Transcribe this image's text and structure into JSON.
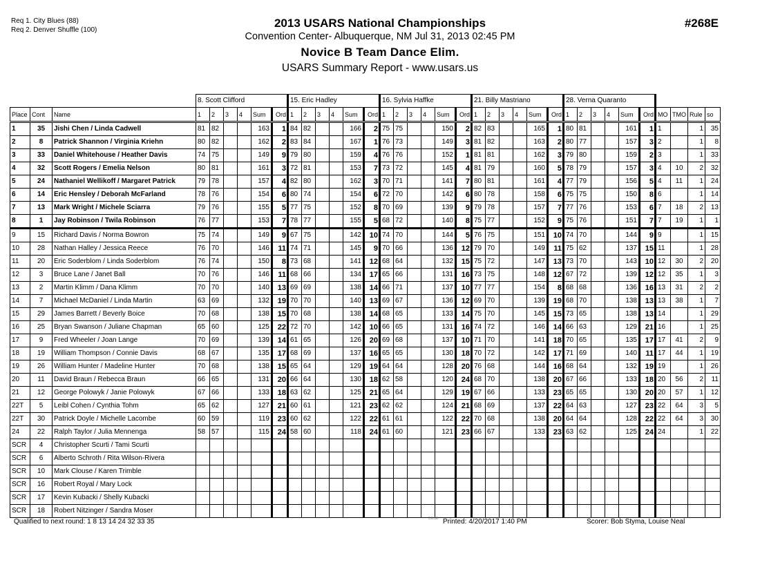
{
  "header": {
    "requests": [
      "Req  1.  City Blues (88)",
      "Req  2.  Denver Shuffle (100)"
    ],
    "title": "2013 USARS National Championships",
    "venue": "Convention Center- Albuquerque, NM  Jul 31, 2013  02:45 PM",
    "event": "Novice B Team Dance Elim.",
    "report": "USARS Summary Report - www.usars.us",
    "event_number": "#268E"
  },
  "table": {
    "judges": [
      "8.  Scott Clifford",
      "15.  Eric Hadley",
      "16.  Sylvia Haffke",
      "21.  Billy Mastriano",
      "28.  Verna Quaranto"
    ],
    "columns": {
      "place": "Place",
      "cont": "Cont",
      "name": "Name",
      "judge_cols": [
        "1",
        "2",
        "3",
        "4",
        "Sum",
        "Ord"
      ],
      "mo": "MO",
      "tmo": "TMO",
      "rule": "Rule",
      "so": "so"
    },
    "qualified_count": 8,
    "rows": [
      {
        "place": "1",
        "cont": "35",
        "name": "Jishi Chen / Linda Cadwell",
        "judges": [
          [
            "81",
            "82",
            "163",
            "1"
          ],
          [
            "84",
            "82",
            "166",
            "2"
          ],
          [
            "75",
            "75",
            "150",
            "2"
          ],
          [
            "82",
            "83",
            "165",
            "1"
          ],
          [
            "80",
            "81",
            "161",
            "1"
          ]
        ],
        "mo": "1",
        "tmo": "",
        "rule": "1",
        "so": "35"
      },
      {
        "place": "2",
        "cont": "8",
        "name": "Patrick Shannon / Virginia Kriehn",
        "judges": [
          [
            "80",
            "82",
            "162",
            "2"
          ],
          [
            "83",
            "84",
            "167",
            "1"
          ],
          [
            "76",
            "73",
            "149",
            "3"
          ],
          [
            "81",
            "82",
            "163",
            "2"
          ],
          [
            "80",
            "77",
            "157",
            "3"
          ]
        ],
        "mo": "2",
        "tmo": "",
        "rule": "1",
        "so": "8"
      },
      {
        "place": "3",
        "cont": "33",
        "name": "Daniel Whitehouse / Heather Davis",
        "judges": [
          [
            "74",
            "75",
            "149",
            "9"
          ],
          [
            "79",
            "80",
            "159",
            "4"
          ],
          [
            "76",
            "76",
            "152",
            "1"
          ],
          [
            "81",
            "81",
            "162",
            "3"
          ],
          [
            "79",
            "80",
            "159",
            "2"
          ]
        ],
        "mo": "3",
        "tmo": "",
        "rule": "1",
        "so": "33"
      },
      {
        "place": "4",
        "cont": "32",
        "name": "Scott Rogers / Emelia Nelson",
        "judges": [
          [
            "80",
            "81",
            "161",
            "3"
          ],
          [
            "72",
            "81",
            "153",
            "7"
          ],
          [
            "73",
            "72",
            "145",
            "4"
          ],
          [
            "81",
            "79",
            "160",
            "5"
          ],
          [
            "78",
            "79",
            "157",
            "3"
          ]
        ],
        "mo": "4",
        "tmo": "10",
        "rule": "2",
        "so": "32"
      },
      {
        "place": "5",
        "cont": "24",
        "name": "Nathaniel Wellikoff / Margaret Patrick",
        "judges": [
          [
            "79",
            "78",
            "157",
            "4"
          ],
          [
            "82",
            "80",
            "162",
            "3"
          ],
          [
            "70",
            "71",
            "141",
            "7"
          ],
          [
            "80",
            "81",
            "161",
            "4"
          ],
          [
            "77",
            "79",
            "156",
            "5"
          ]
        ],
        "mo": "4",
        "tmo": "11",
        "rule": "1",
        "so": "24"
      },
      {
        "place": "6",
        "cont": "14",
        "name": "Eric Hensley / Deborah McFarland",
        "judges": [
          [
            "78",
            "76",
            "154",
            "6"
          ],
          [
            "80",
            "74",
            "154",
            "6"
          ],
          [
            "72",
            "70",
            "142",
            "6"
          ],
          [
            "80",
            "78",
            "158",
            "6"
          ],
          [
            "75",
            "75",
            "150",
            "8"
          ]
        ],
        "mo": "6",
        "tmo": "",
        "rule": "1",
        "so": "14"
      },
      {
        "place": "7",
        "cont": "13",
        "name": "Mark Wright / Michele Sciarra",
        "judges": [
          [
            "79",
            "76",
            "155",
            "5"
          ],
          [
            "77",
            "75",
            "152",
            "8"
          ],
          [
            "70",
            "69",
            "139",
            "9"
          ],
          [
            "79",
            "78",
            "157",
            "7"
          ],
          [
            "77",
            "76",
            "153",
            "6"
          ]
        ],
        "mo": "7",
        "tmo": "18",
        "rule": "2",
        "so": "13"
      },
      {
        "place": "8",
        "cont": "1",
        "name": "Jay Robinson / Twila Robinson",
        "judges": [
          [
            "76",
            "77",
            "153",
            "7"
          ],
          [
            "78",
            "77",
            "155",
            "5"
          ],
          [
            "68",
            "72",
            "140",
            "8"
          ],
          [
            "75",
            "77",
            "152",
            "9"
          ],
          [
            "75",
            "76",
            "151",
            "7"
          ]
        ],
        "mo": "7",
        "tmo": "19",
        "rule": "1",
        "so": "1"
      },
      {
        "place": "9",
        "cont": "15",
        "name": "Richard Davis / Norma Bowron",
        "judges": [
          [
            "75",
            "74",
            "149",
            "9"
          ],
          [
            "67",
            "75",
            "142",
            "10"
          ],
          [
            "74",
            "70",
            "144",
            "5"
          ],
          [
            "76",
            "75",
            "151",
            "10"
          ],
          [
            "74",
            "70",
            "144",
            "9"
          ]
        ],
        "mo": "9",
        "tmo": "",
        "rule": "1",
        "so": "15"
      },
      {
        "place": "10",
        "cont": "28",
        "name": "Nathan Halley / Jessica Reece",
        "judges": [
          [
            "76",
            "70",
            "146",
            "11"
          ],
          [
            "74",
            "71",
            "145",
            "9"
          ],
          [
            "70",
            "66",
            "136",
            "12"
          ],
          [
            "79",
            "70",
            "149",
            "11"
          ],
          [
            "75",
            "62",
            "137",
            "15"
          ]
        ],
        "mo": "11",
        "tmo": "",
        "rule": "1",
        "so": "28"
      },
      {
        "place": "11",
        "cont": "20",
        "name": "Eric Soderblom / Linda Soderblom",
        "judges": [
          [
            "76",
            "74",
            "150",
            "8"
          ],
          [
            "73",
            "68",
            "141",
            "12"
          ],
          [
            "68",
            "64",
            "132",
            "15"
          ],
          [
            "75",
            "72",
            "147",
            "13"
          ],
          [
            "73",
            "70",
            "143",
            "10"
          ]
        ],
        "mo": "12",
        "tmo": "30",
        "rule": "2",
        "so": "20"
      },
      {
        "place": "12",
        "cont": "3",
        "name": "Bruce Lane / Janet Ball",
        "judges": [
          [
            "70",
            "76",
            "146",
            "11"
          ],
          [
            "68",
            "66",
            "134",
            "17"
          ],
          [
            "65",
            "66",
            "131",
            "16"
          ],
          [
            "73",
            "75",
            "148",
            "12"
          ],
          [
            "67",
            "72",
            "139",
            "12"
          ]
        ],
        "mo": "12",
        "tmo": "35",
        "rule": "1",
        "so": "3"
      },
      {
        "place": "13",
        "cont": "2",
        "name": "Martin Klimm / Dana Klimm",
        "judges": [
          [
            "70",
            "70",
            "140",
            "13"
          ],
          [
            "69",
            "69",
            "138",
            "14"
          ],
          [
            "66",
            "71",
            "137",
            "10"
          ],
          [
            "77",
            "77",
            "154",
            "8"
          ],
          [
            "68",
            "68",
            "136",
            "16"
          ]
        ],
        "mo": "13",
        "tmo": "31",
        "rule": "2",
        "so": "2"
      },
      {
        "place": "14",
        "cont": "7",
        "name": "Michael McDaniel / Linda Martin",
        "judges": [
          [
            "63",
            "69",
            "132",
            "19"
          ],
          [
            "70",
            "70",
            "140",
            "13"
          ],
          [
            "69",
            "67",
            "136",
            "12"
          ],
          [
            "69",
            "70",
            "139",
            "19"
          ],
          [
            "68",
            "70",
            "138",
            "13"
          ]
        ],
        "mo": "13",
        "tmo": "38",
        "rule": "1",
        "so": "7"
      },
      {
        "place": "15",
        "cont": "29",
        "name": "James Barrett / Beverly Boice",
        "judges": [
          [
            "70",
            "68",
            "138",
            "15"
          ],
          [
            "70",
            "68",
            "138",
            "14"
          ],
          [
            "68",
            "65",
            "133",
            "14"
          ],
          [
            "75",
            "70",
            "145",
            "15"
          ],
          [
            "73",
            "65",
            "138",
            "13"
          ]
        ],
        "mo": "14",
        "tmo": "",
        "rule": "1",
        "so": "29"
      },
      {
        "place": "16",
        "cont": "25",
        "name": "Bryan Swanson / Juliane Chapman",
        "judges": [
          [
            "65",
            "60",
            "125",
            "22"
          ],
          [
            "72",
            "70",
            "142",
            "10"
          ],
          [
            "66",
            "65",
            "131",
            "16"
          ],
          [
            "74",
            "72",
            "146",
            "14"
          ],
          [
            "66",
            "63",
            "129",
            "21"
          ]
        ],
        "mo": "16",
        "tmo": "",
        "rule": "1",
        "so": "25"
      },
      {
        "place": "17",
        "cont": "9",
        "name": "Fred Wheeler / Joan Lange",
        "judges": [
          [
            "70",
            "69",
            "139",
            "14"
          ],
          [
            "61",
            "65",
            "126",
            "20"
          ],
          [
            "69",
            "68",
            "137",
            "10"
          ],
          [
            "71",
            "70",
            "141",
            "18"
          ],
          [
            "70",
            "65",
            "135",
            "17"
          ]
        ],
        "mo": "17",
        "tmo": "41",
        "rule": "2",
        "so": "9"
      },
      {
        "place": "18",
        "cont": "19",
        "name": "William Thompson / Connie Davis",
        "judges": [
          [
            "68",
            "67",
            "135",
            "17"
          ],
          [
            "68",
            "69",
            "137",
            "16"
          ],
          [
            "65",
            "65",
            "130",
            "18"
          ],
          [
            "70",
            "72",
            "142",
            "17"
          ],
          [
            "71",
            "69",
            "140",
            "11"
          ]
        ],
        "mo": "17",
        "tmo": "44",
        "rule": "1",
        "so": "19"
      },
      {
        "place": "19",
        "cont": "26",
        "name": "William Hunter / Madeline Hunter",
        "judges": [
          [
            "70",
            "68",
            "138",
            "15"
          ],
          [
            "65",
            "64",
            "129",
            "19"
          ],
          [
            "64",
            "64",
            "128",
            "20"
          ],
          [
            "76",
            "68",
            "144",
            "16"
          ],
          [
            "68",
            "64",
            "132",
            "19"
          ]
        ],
        "mo": "19",
        "tmo": "",
        "rule": "1",
        "so": "26"
      },
      {
        "place": "20",
        "cont": "11",
        "name": "David Braun / Rebecca Braun",
        "judges": [
          [
            "66",
            "65",
            "131",
            "20"
          ],
          [
            "66",
            "64",
            "130",
            "18"
          ],
          [
            "62",
            "58",
            "120",
            "24"
          ],
          [
            "68",
            "70",
            "138",
            "20"
          ],
          [
            "67",
            "66",
            "133",
            "18"
          ]
        ],
        "mo": "20",
        "tmo": "56",
        "rule": "2",
        "so": "11"
      },
      {
        "place": "21",
        "cont": "12",
        "name": "George Polowyk / Janie Polowyk",
        "judges": [
          [
            "67",
            "66",
            "133",
            "18"
          ],
          [
            "63",
            "62",
            "125",
            "21"
          ],
          [
            "65",
            "64",
            "129",
            "19"
          ],
          [
            "67",
            "66",
            "133",
            "23"
          ],
          [
            "65",
            "65",
            "130",
            "20"
          ]
        ],
        "mo": "20",
        "tmo": "57",
        "rule": "1",
        "so": "12"
      },
      {
        "place": "22T",
        "cont": "5",
        "name": "Leibl Cohen / Cynthia Tohm",
        "judges": [
          [
            "65",
            "62",
            "127",
            "21"
          ],
          [
            "60",
            "61",
            "121",
            "23"
          ],
          [
            "62",
            "62",
            "124",
            "21"
          ],
          [
            "68",
            "69",
            "137",
            "22"
          ],
          [
            "64",
            "63",
            "127",
            "23"
          ]
        ],
        "mo": "22",
        "tmo": "64",
        "rule": "3",
        "so": "5"
      },
      {
        "place": "22T",
        "cont": "30",
        "name": "Patrick Doyle / Michelle Lacombe",
        "judges": [
          [
            "60",
            "59",
            "119",
            "23"
          ],
          [
            "60",
            "62",
            "122",
            "22"
          ],
          [
            "61",
            "61",
            "122",
            "22"
          ],
          [
            "70",
            "68",
            "138",
            "20"
          ],
          [
            "64",
            "64",
            "128",
            "22"
          ]
        ],
        "mo": "22",
        "tmo": "64",
        "rule": "3",
        "so": "30"
      },
      {
        "place": "24",
        "cont": "22",
        "name": "Ralph Taylor / Julia Mennenga",
        "judges": [
          [
            "58",
            "57",
            "115",
            "24"
          ],
          [
            "58",
            "60",
            "118",
            "24"
          ],
          [
            "61",
            "60",
            "121",
            "23"
          ],
          [
            "66",
            "67",
            "133",
            "23"
          ],
          [
            "63",
            "62",
            "125",
            "24"
          ]
        ],
        "mo": "24",
        "tmo": "",
        "rule": "1",
        "so": "22"
      },
      {
        "place": "SCR",
        "cont": "4",
        "name": "Christopher Scurti / Tami Scurti"
      },
      {
        "place": "SCR",
        "cont": "6",
        "name": "Alberto Schroth / Rita Wilson-Rivera"
      },
      {
        "place": "SCR",
        "cont": "10",
        "name": "Mark Clouse / Karen Trimble"
      },
      {
        "place": "SCR",
        "cont": "16",
        "name": "Robert Royal / Mary Lock"
      },
      {
        "place": "SCR",
        "cont": "17",
        "name": "Kevin Kubacki / Shelly Kubacki"
      },
      {
        "place": "SCR",
        "cont": "18",
        "name": "Robert Nitzinger / Sandra Moser"
      }
    ]
  },
  "footer": {
    "qualified": "Qualified to next round:   1  8 13 14 24 32 33 35",
    "version": "3.8.18",
    "printed": "Printed:  4/20/2017  1:40 PM",
    "scorer": "Scorer:   Bob Styma, Louise Neal"
  }
}
